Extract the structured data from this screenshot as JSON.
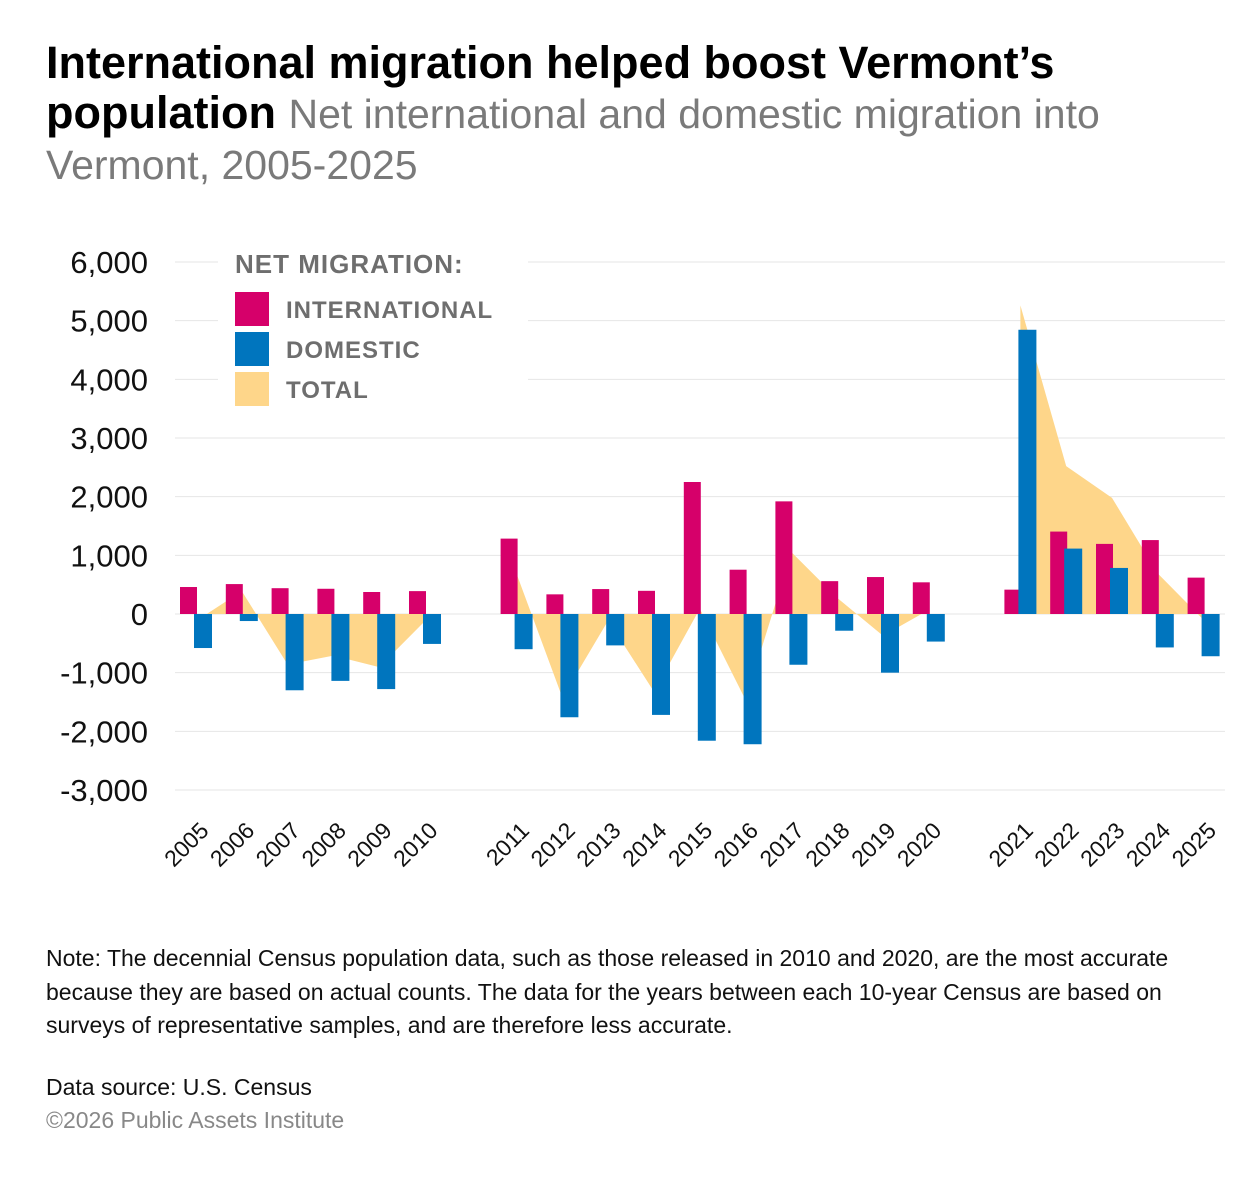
{
  "title": "International migration helped boost Vermont’s population",
  "subtitle": "Net international and domestic migration into Vermont, 2005-2025",
  "note": "Note: The decennial Census population data, such as those released in 2010 and 2020, are the most accurate because they are based on actual counts. The data for the years between each 10-year Census are based on surveys of representative samples, and are therefore less accurate.",
  "source": "Data source: U.S. Census",
  "copyright": "©2026 Public Assets Institute",
  "colors": {
    "international": "#d6006a",
    "domestic": "#0075be",
    "total": "#fed68a"
  },
  "chart_data": {
    "type": "bar",
    "legend_title": "NET MIGRATION:",
    "legend_placement": "top-left",
    "grid": true,
    "ylim": [
      -3000,
      6000
    ],
    "yticks": [
      "6,000",
      "5,000",
      "4,000",
      "3,000",
      "2,000",
      "1,000",
      "0",
      "-1,000",
      "-2,000",
      "-3,000"
    ],
    "ytick_values": [
      6000,
      5000,
      4000,
      3000,
      2000,
      1000,
      0,
      -1000,
      -2000,
      -3000
    ],
    "groups": [
      [
        "2005",
        "2006",
        "2007",
        "2008",
        "2009",
        "2010"
      ],
      [
        "2011",
        "2012",
        "2013",
        "2014",
        "2015",
        "2016",
        "2017",
        "2018",
        "2019",
        "2020"
      ],
      [
        "2021",
        "2022",
        "2023",
        "2024",
        "2025"
      ]
    ],
    "series": [
      {
        "name": "INTERNATIONAL",
        "type": "bar",
        "values": [
          460,
          510,
          440,
          430,
          375,
          390,
          1285,
          335,
          425,
          395,
          2250,
          755,
          1920,
          560,
          630,
          540,
          415,
          1405,
          1195,
          1260,
          620
        ]
      },
      {
        "name": "DOMESTIC",
        "type": "bar",
        "values": [
          -580,
          -120,
          -1300,
          -1140,
          -1280,
          -510,
          -600,
          -1760,
          -535,
          -1720,
          -2160,
          -2220,
          -865,
          -285,
          -1000,
          -470,
          4845,
          1115,
          785,
          -570,
          -720
        ]
      },
      {
        "name": "TOTAL",
        "type": "area",
        "values": [
          -120,
          390,
          -860,
          -710,
          -905,
          -120,
          685,
          -1425,
          -110,
          -1325,
          90,
          -1465,
          1055,
          275,
          -370,
          70,
          5260,
          2520,
          1980,
          690,
          -100
        ]
      }
    ]
  }
}
